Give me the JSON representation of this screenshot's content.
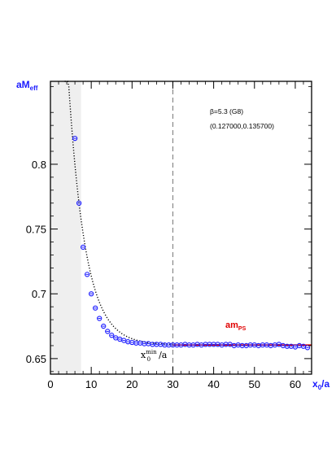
{
  "chart_data": {
    "type": "scatter",
    "ylabel_main": "aM",
    "ylabel_sub": "eff",
    "xlabel_main": "x",
    "xlabel_sub": "0",
    "xlabel_tail": "/a",
    "xlim": [
      0,
      64
    ],
    "ylim": [
      0.638,
      0.864
    ],
    "x_ticks": [
      0,
      10,
      20,
      30,
      40,
      50,
      60
    ],
    "y_ticks": [
      0.65,
      0.7,
      0.75,
      0.8
    ],
    "x_tick_labels": [
      "0",
      "10",
      "20",
      "30",
      "40",
      "50",
      "60"
    ],
    "y_tick_labels": [
      "0.65",
      "0.7",
      "0.75",
      "0.8"
    ],
    "annotation_beta": "β=5.3 (G8)",
    "annotation_kappa": "(0.127000,0.135700)",
    "fit_label_main": "am",
    "fit_label_sub": "PS",
    "xmin_label_main": "x",
    "xmin_label_sup": "min",
    "xmin_label_sub": "0",
    "xmin_label_tail": "/a",
    "xmin_line": 30,
    "excluded_region": [
      0,
      7.5
    ],
    "fit_value": 0.6605,
    "fit_range": [
      30,
      64
    ],
    "series": [
      {
        "x": [
          6,
          7,
          8,
          9,
          10,
          11,
          12,
          13,
          14,
          15,
          16,
          17,
          18,
          19,
          20,
          21,
          22,
          23,
          24,
          25,
          26,
          27,
          28,
          29,
          30,
          31,
          32,
          33,
          34,
          35,
          36,
          37,
          38,
          39,
          40,
          41,
          42,
          43,
          44,
          45,
          46,
          47,
          48,
          49,
          50,
          51,
          52,
          53,
          54,
          55,
          56,
          57,
          58,
          59,
          60,
          61,
          62,
          63
        ],
        "y": [
          0.82,
          0.77,
          0.736,
          0.715,
          0.7,
          0.689,
          0.681,
          0.675,
          0.671,
          0.668,
          0.666,
          0.665,
          0.664,
          0.663,
          0.6625,
          0.662,
          0.662,
          0.6615,
          0.6615,
          0.661,
          0.661,
          0.661,
          0.6605,
          0.6605,
          0.6605,
          0.6605,
          0.6605,
          0.661,
          0.6605,
          0.6605,
          0.661,
          0.6605,
          0.661,
          0.661,
          0.661,
          0.661,
          0.6605,
          0.661,
          0.661,
          0.66,
          0.6605,
          0.66,
          0.66,
          0.6605,
          0.6605,
          0.66,
          0.6605,
          0.6605,
          0.66,
          0.6605,
          0.661,
          0.66,
          0.6595,
          0.6595,
          0.659,
          0.66,
          0.6595,
          0.6585
        ]
      }
    ],
    "colors": {
      "points": "#1a1aff",
      "fit": "#e00000",
      "label_blue": "#1a1aff",
      "shade": "#efefef"
    }
  }
}
